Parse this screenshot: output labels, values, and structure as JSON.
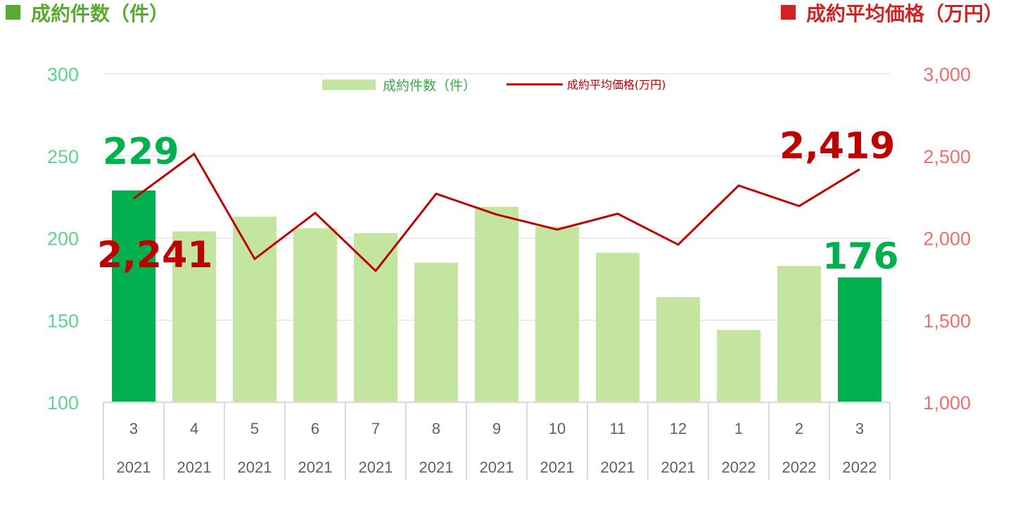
{
  "header": {
    "left_title": "成約件数（件）",
    "right_title": "成約平均価格（万円）"
  },
  "colors": {
    "bar_highlight": "#00b04f",
    "bar_normal": "#c3e59f",
    "line": "#c00000",
    "left_title_color": "#5aaa32",
    "right_title_color": "#d42121",
    "left_axis_color": "#5fd38f",
    "right_axis_color": "#f26d6d",
    "highlight_label_green": "#00b04f",
    "highlight_label_red": "#c00000"
  },
  "chart_data": {
    "type": "bar",
    "categories": [
      {
        "month": "3",
        "year": "2021"
      },
      {
        "month": "4",
        "year": "2021"
      },
      {
        "month": "5",
        "year": "2021"
      },
      {
        "month": "6",
        "year": "2021"
      },
      {
        "month": "7",
        "year": "2021"
      },
      {
        "month": "8",
        "year": "2021"
      },
      {
        "month": "9",
        "year": "2021"
      },
      {
        "month": "10",
        "year": "2021"
      },
      {
        "month": "11",
        "year": "2021"
      },
      {
        "month": "12",
        "year": "2021"
      },
      {
        "month": "1",
        "year": "2022"
      },
      {
        "month": "2",
        "year": "2022"
      },
      {
        "month": "3",
        "year": "2022"
      }
    ],
    "series": [
      {
        "name": "成約件数（件）",
        "type": "bar",
        "axis": "left",
        "values": [
          229,
          204,
          213,
          206,
          203,
          185,
          219,
          207,
          191,
          164,
          144,
          183,
          176
        ],
        "highlight_indices": [
          0,
          12
        ]
      },
      {
        "name": "成約平均価格(万円)",
        "type": "line",
        "axis": "right",
        "values": [
          2241,
          2512,
          1873,
          2153,
          1800,
          2270,
          2143,
          2052,
          2148,
          1960,
          2320,
          2195,
          2419
        ]
      }
    ],
    "left_axis": {
      "ylim": [
        100,
        300
      ],
      "ticks": [
        "100",
        "150",
        "200",
        "250",
        "300"
      ]
    },
    "right_axis": {
      "ylim": [
        1000,
        3000
      ],
      "ticks": [
        "1,000",
        "1,500",
        "2,000",
        "2,500",
        "3,000"
      ]
    },
    "data_labels": {
      "bar_first": "229",
      "bar_last": "176",
      "line_first": "2,241",
      "line_last": "2,419"
    },
    "grid": true,
    "legend": {
      "position": "top-center",
      "bar_label": "成約件数（件）",
      "line_label": "成約平均価格(万円)"
    }
  }
}
